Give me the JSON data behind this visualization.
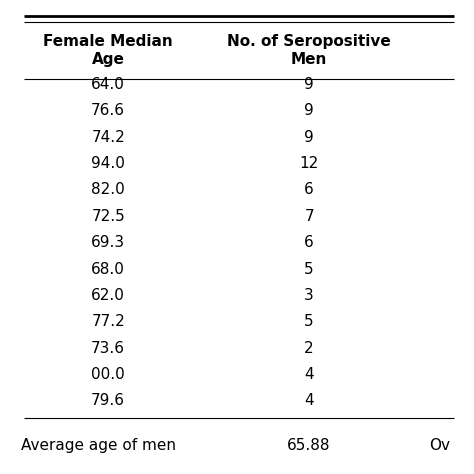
{
  "col1_header": "Female Median\nAge",
  "col2_header": "No. of Seropositive\nMen",
  "rows": [
    [
      "64.0",
      "9"
    ],
    [
      "76.6",
      "9"
    ],
    [
      "74.2",
      "9"
    ],
    [
      "94.0",
      "12"
    ],
    [
      "82.0",
      "6"
    ],
    [
      "72.5",
      "7"
    ],
    [
      "69.3",
      "6"
    ],
    [
      "68.0",
      "5"
    ],
    [
      "62.0",
      "3"
    ],
    [
      "77.2",
      "5"
    ],
    [
      "73.6",
      "2"
    ],
    [
      "00.0",
      "4"
    ],
    [
      "79.6",
      "4"
    ]
  ],
  "footer_label": "Average age of men",
  "footer_val1": "65.88",
  "footer_val2": "Ov",
  "background_color": "#ffffff",
  "text_color": "#000000",
  "header_fontsize": 11,
  "body_fontsize": 11,
  "footer_fontsize": 11
}
